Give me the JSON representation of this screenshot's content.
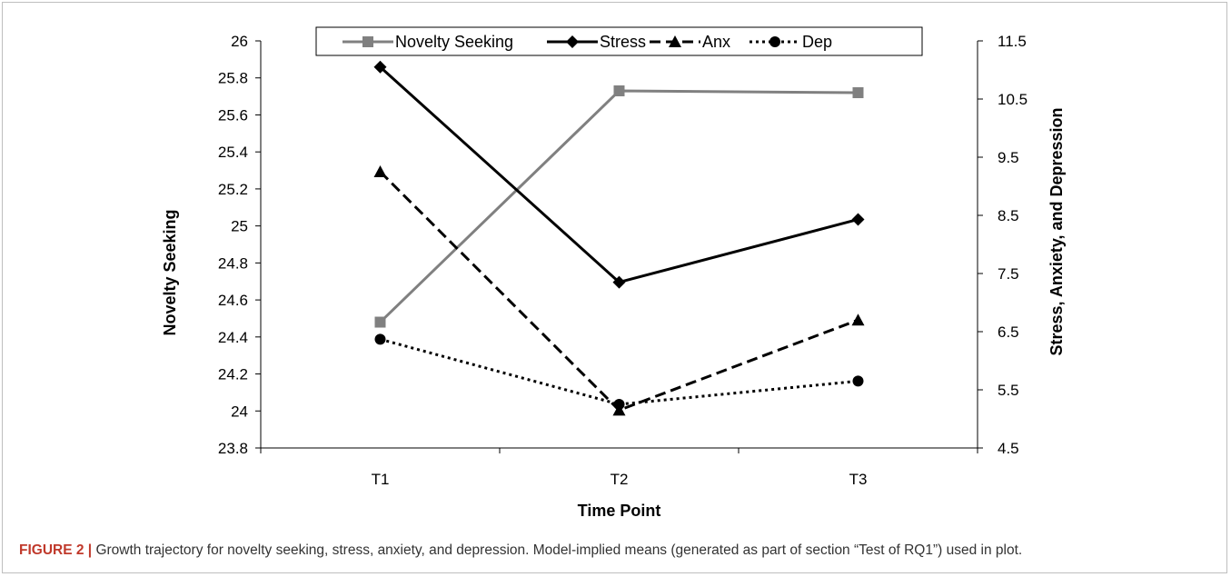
{
  "caption": {
    "label": "FIGURE 2 |",
    "text": "Growth trajectory for novelty seeking, stress, anxiety, and depression. Model-implied means (generated as part of section “Test of RQ1”) used in plot."
  },
  "chart_data": {
    "type": "line",
    "categories": [
      "T1",
      "T2",
      "T3"
    ],
    "xlabel": "Time Point",
    "ylabel_left": "Novelty Seeking",
    "ylabel_right": "Stress, Anxiety, and Depression",
    "ylim_left": [
      23.8,
      26
    ],
    "yticks_left": [
      "23.8",
      "24",
      "24.2",
      "24.4",
      "24.6",
      "24.8",
      "25",
      "25.2",
      "25.4",
      "25.6",
      "25.8",
      "26"
    ],
    "ylim_right": [
      4.5,
      11.5
    ],
    "yticks_right": [
      "4.5",
      "5.5",
      "6.5",
      "7.5",
      "8.5",
      "9.5",
      "10.5",
      "11.5"
    ],
    "grid": false,
    "legend_position": "top",
    "series": [
      {
        "name": "Novelty Seeking",
        "axis": "left",
        "values": [
          24.48,
          25.73,
          25.72
        ],
        "color": "#808080",
        "dash": "solid",
        "marker": "square"
      },
      {
        "name": "Stress",
        "axis": "right",
        "values": [
          11.05,
          7.35,
          8.43
        ],
        "color": "#000000",
        "dash": "solid",
        "marker": "diamond"
      },
      {
        "name": "Anx",
        "axis": "right",
        "values": [
          9.25,
          5.15,
          6.7
        ],
        "color": "#000000",
        "dash": "dashed",
        "marker": "triangle"
      },
      {
        "name": "Dep",
        "axis": "right",
        "values": [
          6.37,
          5.25,
          5.65
        ],
        "color": "#000000",
        "dash": "dotted",
        "marker": "circle"
      }
    ]
  }
}
